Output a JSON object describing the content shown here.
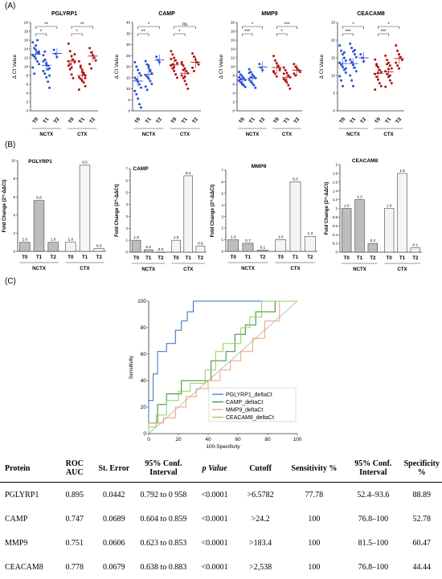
{
  "panel_labels": {
    "a": "(A)",
    "b": "(B)",
    "c": "(C)"
  },
  "chart_data": [
    {
      "type": "scatter",
      "title": "PGLYRP1",
      "ylabel": "Δ Ct Value",
      "ylim": [
        0,
        20
      ],
      "yticks": [
        0,
        2,
        4,
        6,
        8,
        10,
        12,
        14,
        16,
        18,
        20
      ],
      "categories": [
        "T0",
        "T1",
        "T2",
        "T0",
        "T1",
        "T2"
      ],
      "groups": [
        "NCTX",
        "CTX"
      ],
      "colors": [
        "#2b4fd6",
        "#2b4fd6",
        "#2b4fd6",
        "#b01515",
        "#b01515",
        "#b01515"
      ],
      "points": [
        [
          15.5,
          14.2,
          13.8,
          13.2,
          13.0,
          12.6,
          12.3,
          11.8,
          11.2,
          10.6,
          9.8,
          8.4,
          14.8,
          16.0,
          13.4
        ],
        [
          12.6,
          11.6,
          10.8,
          10.2,
          9.6,
          9.0,
          8.4,
          7.6,
          6.6,
          5.2,
          11.2,
          13.4,
          10.5,
          9.4,
          8.0
        ],
        [
          13.8,
          12.9,
          12.2
        ],
        [
          15.2,
          13.5,
          12.4,
          11.6,
          11.0,
          10.2,
          9.4,
          8.2,
          7.4,
          12.8,
          11.2,
          10.6,
          9.8
        ],
        [
          11.2,
          10.2,
          9.3,
          8.6,
          8.0,
          7.6,
          7.2,
          6.8,
          6.4,
          5.6,
          4.8,
          9.8,
          8.8,
          8.3,
          7.4
        ],
        [
          14.2,
          13.2,
          12.6,
          12.0,
          11.4,
          10.6,
          9.6
        ]
      ],
      "means": [
        12.8,
        10.3,
        13.0,
        11.3,
        8.0,
        12.4
      ],
      "brackets": [
        {
          "from": 0,
          "to": 1,
          "text": "*"
        },
        {
          "from": 0,
          "to": 2,
          "text": "**"
        },
        {
          "from": 3,
          "to": 4,
          "text": "*"
        },
        {
          "from": 3,
          "to": 5,
          "text": "**"
        }
      ]
    },
    {
      "type": "scatter",
      "title": "CAMP",
      "ylabel": "Δ Ct Value",
      "ylim": [
        0,
        40
      ],
      "yticks": [
        0,
        5,
        10,
        15,
        20,
        25,
        30,
        35,
        40
      ],
      "categories": [
        "T0",
        "T1",
        "T2",
        "T0",
        "T1",
        "T2"
      ],
      "groups": [
        "NCTX",
        "CTX"
      ],
      "colors": [
        "#2b4fd6",
        "#2b4fd6",
        "#2b4fd6",
        "#b01515",
        "#b01515",
        "#b01515"
      ],
      "points": [
        [
          22.0,
          20.0,
          18.5,
          17.0,
          16.0,
          15.0,
          14.2,
          13.2,
          12.0,
          10.5,
          9.0,
          7.5,
          5.5,
          3.0,
          1.5
        ],
        [
          22.5,
          21.0,
          19.5,
          18.0,
          17.0,
          16.2,
          15.4,
          14.6,
          13.5,
          12.2,
          11.0,
          9.5,
          20.5,
          18.5
        ],
        [
          24.5,
          23.0,
          22.0
        ],
        [
          27.0,
          25.5,
          24.0,
          22.8,
          21.6,
          20.5,
          19.2,
          18.0,
          16.5,
          15.0,
          23.5,
          21.0,
          19.8
        ],
        [
          22.0,
          20.5,
          19.2,
          18.0,
          17.0,
          16.0,
          14.8,
          13.5,
          12.0,
          10.0,
          21.2,
          18.5,
          15.5
        ],
        [
          26.0,
          24.5,
          23.2,
          22.0,
          21.0,
          19.5,
          18.0
        ]
      ],
      "means": [
        13.5,
        16.5,
        23.0,
        20.8,
        17.0,
        22.0
      ],
      "brackets": [
        {
          "from": 0,
          "to": 1,
          "text": "**"
        },
        {
          "from": 0,
          "to": 2,
          "text": "*"
        },
        {
          "from": 3,
          "to": 4,
          "text": "*"
        },
        {
          "from": 3,
          "to": 5,
          "text": "ns"
        }
      ]
    },
    {
      "type": "scatter",
      "title": "MMP9",
      "ylabel": "Δ Ct Value",
      "ylim": [
        0,
        20
      ],
      "yticks": [
        0,
        2,
        4,
        6,
        8,
        10,
        12,
        14,
        16,
        18,
        20
      ],
      "categories": [
        "T0",
        "T1",
        "T2",
        "T0",
        "T1",
        "T2"
      ],
      "groups": [
        "NCTX",
        "CTX"
      ],
      "colors": [
        "#2b4fd6",
        "#2b4fd6",
        "#2b4fd6",
        "#b01515",
        "#b01515",
        "#b01515"
      ],
      "points": [
        [
          8.8,
          8.2,
          7.8,
          7.4,
          7.0,
          6.8,
          6.5,
          6.2,
          5.8,
          5.4,
          7.6,
          7.2,
          6.0
        ],
        [
          9.4,
          8.8,
          8.2,
          7.8,
          7.4,
          7.0,
          6.6,
          6.2,
          5.8,
          5.2,
          8.6,
          7.6
        ],
        [
          10.6,
          9.8,
          9.2
        ],
        [
          12.4,
          11.4,
          10.8,
          10.2,
          9.6,
          9.0,
          8.4,
          7.8,
          10.0,
          9.2,
          8.8
        ],
        [
          9.8,
          9.2,
          8.6,
          8.0,
          7.6,
          7.2,
          6.8,
          6.4,
          5.8,
          5.0,
          8.4,
          7.0
        ],
        [
          10.6,
          10.0,
          9.6,
          9.2,
          8.8,
          8.4,
          8.0
        ]
      ],
      "means": [
        7.0,
        7.4,
        9.9,
        9.8,
        7.6,
        9.2
      ],
      "brackets": [
        {
          "from": 0,
          "to": 1,
          "text": "***"
        },
        {
          "from": 0,
          "to": 2,
          "text": "*"
        },
        {
          "from": 3,
          "to": 4,
          "text": "*"
        },
        {
          "from": 3,
          "to": 5,
          "text": "***"
        }
      ]
    },
    {
      "type": "scatter",
      "title": "CEACAM8",
      "ylabel": "Δ Ct Value",
      "ylim": [
        0,
        25
      ],
      "yticks": [
        0,
        5,
        10,
        15,
        20,
        25
      ],
      "categories": [
        "T0",
        "T1",
        "T2",
        "T0",
        "T1",
        "T2"
      ],
      "groups": [
        "NCTX",
        "CTX"
      ],
      "colors": [
        "#2b4fd6",
        "#2b4fd6",
        "#2b4fd6",
        "#b01515",
        "#b01515",
        "#b01515"
      ],
      "points": [
        [
          18.5,
          17.0,
          16.0,
          15.0,
          14.2,
          13.6,
          13.0,
          12.4,
          11.6,
          10.8,
          9.8,
          8.6,
          7.0,
          16.5,
          12.0
        ],
        [
          19.0,
          17.8,
          16.8,
          16.0,
          15.2,
          14.5,
          13.8,
          13.0,
          12.2,
          11.2,
          10.0,
          8.6,
          7.0,
          17.2
        ],
        [
          16.0,
          15.0,
          14.0
        ],
        [
          14.5,
          13.2,
          12.4,
          11.6,
          11.0,
          10.4,
          9.6,
          8.8,
          7.8,
          7.0,
          6.0,
          12.8,
          10.8
        ],
        [
          15.6,
          14.4,
          13.6,
          12.8,
          12.0,
          11.2,
          10.4,
          9.6,
          8.6,
          7.8,
          6.8,
          13.2,
          11.8,
          10.0
        ],
        [
          18.5,
          17.0,
          16.0,
          15.2,
          14.4,
          13.6,
          12.8,
          12.0
        ]
      ],
      "means": [
        13.4,
        13.4,
        15.0,
        10.6,
        11.0,
        14.8
      ],
      "brackets": [
        {
          "from": 0,
          "to": 1,
          "text": "***"
        },
        {
          "from": 0,
          "to": 2,
          "text": "*"
        },
        {
          "from": 3,
          "to": 4,
          "text": "***"
        },
        {
          "from": 3,
          "to": 5,
          "text": "*"
        }
      ]
    },
    {
      "type": "bar",
      "title": "PGLYRP1",
      "ylabel": "Fold Change (2^-ΔΔCt)",
      "ylim": [
        0,
        10
      ],
      "yticks": [
        0,
        2,
        4,
        6,
        8,
        10
      ],
      "categories": [
        "T0",
        "T1",
        "T2",
        "T0",
        "T1",
        "T2"
      ],
      "groups": [
        "NCTX",
        "CTX"
      ],
      "values": [
        1.0,
        5.6,
        1.0,
        1.0,
        9.5,
        0.3
      ],
      "value_labels": [
        "1.0",
        "5.6",
        "1.0",
        "1.0",
        "9.5",
        "0.3"
      ],
      "colors": [
        "#bdbdbd",
        "#bdbdbd",
        "#bdbdbd",
        "#f4f4f4",
        "#f4f4f4",
        "#f4f4f4"
      ]
    },
    {
      "type": "bar",
      "title": "CAMP",
      "ylabel": "Fold Change (2^-ΔΔCt)",
      "ylim": [
        0,
        7
      ],
      "yticks": [
        0,
        1,
        2,
        3,
        4,
        5,
        6,
        7
      ],
      "categories": [
        "T0",
        "T1",
        "T2",
        "T0",
        "T1",
        "T2"
      ],
      "groups": [
        "NCTX",
        "CTX"
      ],
      "values": [
        1.0,
        0.2,
        0.0,
        1.0,
        6.4,
        0.5
      ],
      "value_labels": [
        "1.0",
        "0.2",
        "0.0",
        "1.0",
        "6.4",
        "0.5"
      ],
      "colors": [
        "#bdbdbd",
        "#bdbdbd",
        "#bdbdbd",
        "#f4f4f4",
        "#f4f4f4",
        "#f4f4f4"
      ]
    },
    {
      "type": "bar",
      "title": "MMP9",
      "ylabel": "Fold Change (2^-ΔΔCt)",
      "ylim": [
        0,
        7
      ],
      "yticks": [
        0,
        1,
        2,
        3,
        4,
        5,
        6,
        7
      ],
      "categories": [
        "T0",
        "T1",
        "T2",
        "T0",
        "T1",
        "T2"
      ],
      "groups": [
        "NCTX",
        "CTX"
      ],
      "values": [
        1.0,
        0.7,
        0.1,
        1.0,
        6.0,
        1.3
      ],
      "value_labels": [
        "1.0",
        "0.7",
        "0.1",
        "1.0",
        "6.0",
        "1.3"
      ],
      "colors": [
        "#bdbdbd",
        "#bdbdbd",
        "#bdbdbd",
        "#f4f4f4",
        "#f4f4f4",
        "#f4f4f4"
      ]
    },
    {
      "type": "bar",
      "title": "CEACAM8",
      "ylabel": "Fold Change (2^-ΔΔCt)",
      "ylim": [
        0,
        2
      ],
      "yticks": [
        0,
        0.2,
        0.4,
        0.6,
        0.8,
        1.0,
        1.2,
        1.4,
        1.6,
        1.8,
        2.0
      ],
      "categories": [
        "T0",
        "T1",
        "T2",
        "T0",
        "T1",
        "T2"
      ],
      "groups": [
        "NCTX",
        "CTX"
      ],
      "values": [
        1.0,
        1.2,
        0.2,
        1.0,
        1.8,
        0.1
      ],
      "value_labels": [
        "1.0",
        "1.2",
        "0.2",
        "1.0",
        "1.8",
        "0.1"
      ],
      "colors": [
        "#bdbdbd",
        "#bdbdbd",
        "#bdbdbd",
        "#f4f4f4",
        "#f4f4f4",
        "#f4f4f4"
      ]
    },
    {
      "type": "line",
      "title": "",
      "xlabel": "100-Specificity",
      "ylabel": "Sensitivity",
      "xlim": [
        0,
        100
      ],
      "ylim": [
        0,
        100
      ],
      "xticks": [
        0,
        20,
        40,
        60,
        80,
        100
      ],
      "yticks": [
        0,
        20,
        40,
        60,
        80,
        100
      ],
      "diagonal": true,
      "series": [
        {
          "name": "PGLYRP1_deltaCt",
          "color": "#2f6fc0",
          "x": [
            0,
            0,
            3,
            3,
            6,
            6,
            12,
            12,
            18,
            18,
            22,
            22,
            26,
            26,
            30,
            30,
            100
          ],
          "y": [
            0,
            25,
            25,
            45,
            45,
            62,
            62,
            68,
            68,
            78,
            78,
            85,
            85,
            92,
            92,
            100,
            100
          ]
        },
        {
          "name": "CAMP_deltaCt",
          "color": "#2e8b2e",
          "x": [
            0,
            0,
            6,
            6,
            12,
            12,
            22,
            22,
            32,
            32,
            42,
            42,
            52,
            52,
            58,
            58,
            65,
            65,
            72,
            72,
            85,
            85,
            100
          ],
          "y": [
            0,
            8,
            8,
            22,
            22,
            30,
            30,
            40,
            40,
            40,
            40,
            55,
            55,
            62,
            62,
            75,
            75,
            82,
            82,
            92,
            92,
            100,
            100
          ]
        },
        {
          "name": "MMP9_deltaCt",
          "color": "#f0a070",
          "x": [
            0,
            0,
            10,
            10,
            18,
            18,
            25,
            25,
            32,
            32,
            40,
            40,
            48,
            48,
            55,
            55,
            62,
            62,
            70,
            70,
            78,
            78,
            88,
            88,
            100
          ],
          "y": [
            0,
            8,
            8,
            12,
            12,
            20,
            20,
            28,
            28,
            34,
            34,
            40,
            40,
            48,
            48,
            55,
            55,
            62,
            62,
            72,
            72,
            85,
            85,
            100,
            100
          ]
        },
        {
          "name": "CEACAM8_deltaCt",
          "color": "#8fcf5f",
          "x": [
            0,
            0,
            5,
            5,
            12,
            12,
            20,
            20,
            28,
            28,
            38,
            38,
            45,
            45,
            50,
            50,
            62,
            62,
            68,
            68,
            76,
            76,
            100
          ],
          "y": [
            0,
            5,
            5,
            14,
            14,
            25,
            25,
            32,
            32,
            38,
            38,
            48,
            48,
            62,
            62,
            68,
            68,
            80,
            80,
            88,
            88,
            100,
            100
          ]
        }
      ]
    },
    {
      "type": "table",
      "columns": [
        "Protein",
        "ROC AUC",
        "St. Error",
        "95% Conf. Interval",
        "p Value",
        "Cutoff",
        "Sensitivity %",
        "95% Conf. Interval",
        "Specificity %"
      ],
      "rows": [
        [
          "PGLYRP1",
          "0.895",
          "0.0442",
          "0.792 to 0 958",
          "<0.0001",
          ">6.5782",
          "77.78",
          "52.4–93.6",
          "88.89"
        ],
        [
          "CAMP",
          "0.747",
          "0.0689",
          "0.604 to 0.859",
          "<0.0001",
          ">24.2",
          "100",
          "76.8–100",
          "52.78"
        ],
        [
          "MMP9",
          "0.751",
          "0.0606",
          "0.623 to 0.853",
          "<0.0001",
          ">183.4",
          "100",
          "81.5–100",
          "60.47"
        ],
        [
          "CEACAM8",
          "0.778",
          "0.0679",
          "0.638 to 0.883",
          "<0.0001",
          ">2,538",
          "100",
          "76.8–100",
          "44.44"
        ]
      ]
    }
  ]
}
